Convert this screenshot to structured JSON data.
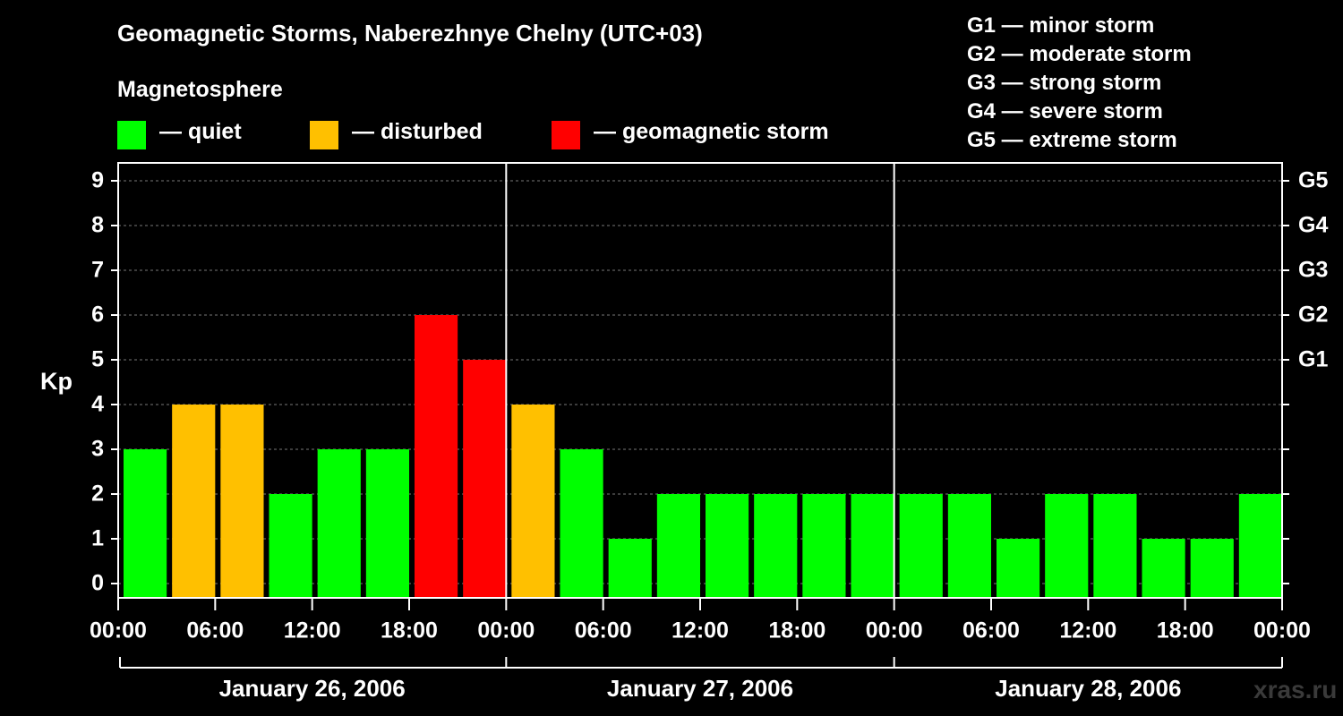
{
  "header": {
    "title": "Geomagnetic Storms, Naberezhnye Chelny (UTC+03)",
    "magnetosphere_label": "Magnetosphere"
  },
  "legend": [
    {
      "label": "— quiet",
      "color": "#00ff00"
    },
    {
      "label": "— disturbed",
      "color": "#ffc000"
    },
    {
      "label": "— geomagnetic storm",
      "color": "#ff0000"
    }
  ],
  "storm_scale": [
    "G1 — minor storm",
    "G2 — moderate storm",
    "G3 — strong storm",
    "G4 — severe storm",
    "G5 — extreme storm"
  ],
  "watermark": "xras.ru",
  "chart_data": {
    "type": "bar",
    "ylabel": "Kp",
    "ylim": [
      0,
      9
    ],
    "yticks": [
      "0",
      "1",
      "2",
      "3",
      "4",
      "5",
      "6",
      "7",
      "8",
      "9"
    ],
    "right_axis_labels": [
      {
        "kp": 5,
        "label": "G1"
      },
      {
        "kp": 6,
        "label": "G2"
      },
      {
        "kp": 7,
        "label": "G3"
      },
      {
        "kp": 8,
        "label": "G4"
      },
      {
        "kp": 9,
        "label": "G5"
      }
    ],
    "xticks": [
      "00:00",
      "06:00",
      "12:00",
      "18:00",
      "00:00",
      "06:00",
      "12:00",
      "18:00",
      "00:00",
      "06:00",
      "12:00",
      "18:00",
      "00:00"
    ],
    "days": [
      "January 26, 2006",
      "January 27, 2006",
      "January 28, 2006"
    ],
    "interval_hours": 3,
    "values": [
      3,
      4,
      4,
      2,
      3,
      3,
      6,
      5,
      4,
      3,
      1,
      2,
      2,
      2,
      2,
      2,
      2,
      2,
      1,
      2,
      2,
      1,
      1,
      2
    ],
    "thresholds": {
      "disturbed": 4,
      "storm": 5
    },
    "colors": {
      "quiet": "#00ff00",
      "disturbed": "#ffc000",
      "storm": "#ff0000"
    },
    "grid": true
  }
}
